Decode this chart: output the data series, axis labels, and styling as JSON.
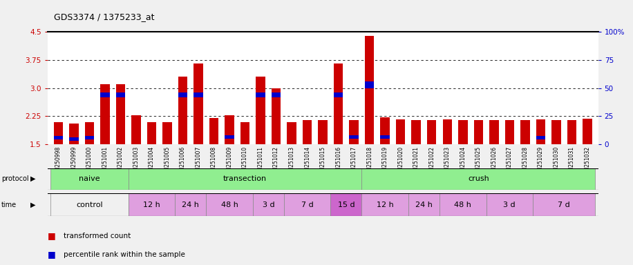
{
  "title": "GDS3374 / 1375233_at",
  "samples": [
    "GSM250998",
    "GSM250999",
    "GSM251000",
    "GSM251001",
    "GSM251002",
    "GSM251003",
    "GSM251004",
    "GSM251005",
    "GSM251006",
    "GSM251007",
    "GSM251008",
    "GSM251009",
    "GSM251010",
    "GSM251011",
    "GSM251012",
    "GSM251013",
    "GSM251014",
    "GSM251015",
    "GSM251016",
    "GSM251017",
    "GSM251018",
    "GSM251019",
    "GSM251020",
    "GSM251021",
    "GSM251022",
    "GSM251023",
    "GSM251024",
    "GSM251025",
    "GSM251026",
    "GSM251027",
    "GSM251028",
    "GSM251029",
    "GSM251030",
    "GSM251031",
    "GSM251032"
  ],
  "red_values": [
    2.1,
    2.05,
    2.1,
    3.1,
    3.1,
    2.28,
    2.1,
    2.1,
    3.3,
    3.65,
    2.2,
    2.28,
    2.1,
    3.3,
    3.0,
    2.1,
    2.15,
    2.15,
    3.65,
    2.15,
    4.4,
    2.22,
    2.17,
    2.15,
    2.15,
    2.17,
    2.15,
    2.15,
    2.15,
    2.15,
    2.15,
    2.17,
    2.15,
    2.15,
    2.18
  ],
  "blue_values": [
    0.09,
    0.08,
    0.09,
    0.13,
    0.13,
    0.0,
    0.0,
    0.0,
    0.13,
    0.13,
    0.0,
    0.1,
    0.0,
    0.13,
    0.13,
    0.0,
    0.0,
    0.0,
    0.13,
    0.09,
    0.18,
    0.1,
    0.0,
    0.0,
    0.0,
    0.0,
    0.0,
    0.0,
    0.0,
    0.0,
    0.0,
    0.1,
    0.0,
    0.0,
    0.0
  ],
  "blue_positions": [
    1.63,
    1.6,
    1.63,
    2.75,
    2.75,
    0.0,
    0.0,
    0.0,
    2.75,
    2.75,
    0.0,
    1.65,
    0.0,
    2.75,
    2.75,
    0.0,
    0.0,
    0.0,
    2.75,
    1.65,
    3.0,
    1.65,
    0.0,
    0.0,
    0.0,
    0.0,
    0.0,
    0.0,
    0.0,
    0.0,
    0.0,
    1.63,
    0.0,
    0.0,
    0.0
  ],
  "y_min": 1.5,
  "y_max": 4.5,
  "y_ticks_left": [
    1.5,
    2.25,
    3.0,
    3.75,
    4.5
  ],
  "y_ticks_right_pct": [
    0,
    25,
    50,
    75,
    100
  ],
  "y_right_labels": [
    "0",
    "25",
    "50",
    "75",
    "100%"
  ],
  "protocol_groups": [
    {
      "label": "naive",
      "start": 0,
      "end": 4,
      "color": "#90ee90"
    },
    {
      "label": "transection",
      "start": 5,
      "end": 19,
      "color": "#90ee90"
    },
    {
      "label": "crush",
      "start": 20,
      "end": 34,
      "color": "#90ee90"
    }
  ],
  "time_groups": [
    {
      "label": "control",
      "start": 0,
      "end": 4,
      "color": "#f0f0f0"
    },
    {
      "label": "12 h",
      "start": 5,
      "end": 7,
      "color": "#df9fdf"
    },
    {
      "label": "24 h",
      "start": 8,
      "end": 9,
      "color": "#df9fdf"
    },
    {
      "label": "48 h",
      "start": 10,
      "end": 12,
      "color": "#df9fdf"
    },
    {
      "label": "3 d",
      "start": 13,
      "end": 14,
      "color": "#df9fdf"
    },
    {
      "label": "7 d",
      "start": 15,
      "end": 17,
      "color": "#df9fdf"
    },
    {
      "label": "15 d",
      "start": 18,
      "end": 19,
      "color": "#cc66cc"
    },
    {
      "label": "12 h",
      "start": 20,
      "end": 22,
      "color": "#df9fdf"
    },
    {
      "label": "24 h",
      "start": 23,
      "end": 24,
      "color": "#df9fdf"
    },
    {
      "label": "48 h",
      "start": 25,
      "end": 27,
      "color": "#df9fdf"
    },
    {
      "label": "3 d",
      "start": 28,
      "end": 30,
      "color": "#df9fdf"
    },
    {
      "label": "7 d",
      "start": 31,
      "end": 34,
      "color": "#df9fdf"
    }
  ],
  "bar_color": "#cc0000",
  "blue_color": "#0000cc",
  "bg_color": "#f0f0f0",
  "plot_bg": "#ffffff",
  "ticklabel_bg": "#d0d0d0",
  "legend_red": "transformed count",
  "legend_blue": "percentile rank within the sample",
  "left_axis_color": "#cc0000",
  "right_axis_color": "#0000cc"
}
